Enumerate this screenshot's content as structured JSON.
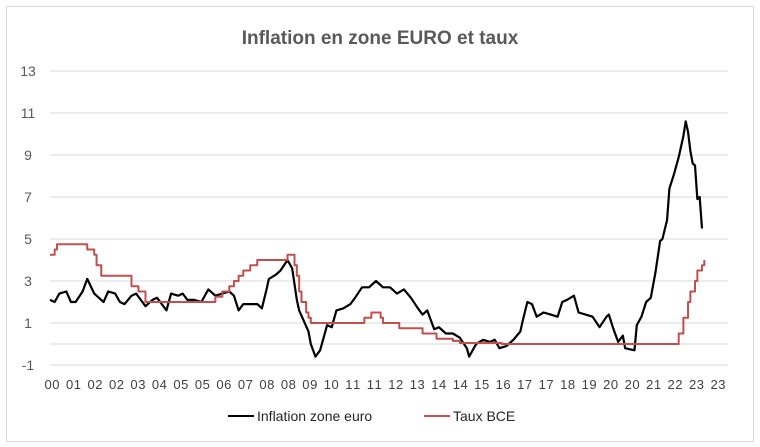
{
  "chart_data": {
    "type": "line",
    "title": "Inflation en zone EURO  et taux",
    "ylim": [
      -1,
      13
    ],
    "yticks": [
      "13",
      "11",
      "9",
      "7",
      "5",
      "3",
      "1",
      "",
      "-1"
    ],
    "ytick_values": [
      13,
      11,
      9,
      7,
      5,
      3,
      1,
      0,
      -1
    ],
    "xlim": [
      "2000-01",
      "2023-05"
    ],
    "xtick_labels": [
      "00",
      "01",
      "02",
      "02",
      "03",
      "04",
      "05",
      "05",
      "06",
      "07",
      "08",
      "08",
      "09",
      "10",
      "11",
      "11",
      "12",
      "13",
      "14",
      "14",
      "15",
      "16",
      "17",
      "17",
      "18",
      "19",
      "20",
      "20",
      "21",
      "22",
      "23",
      "23"
    ],
    "grid": true,
    "legend_position": "bottom",
    "series": [
      {
        "name": "Inflation zone euro",
        "color": "#000000",
        "step": false,
        "points": [
          [
            "2000-01",
            2.1
          ],
          [
            "2000-03",
            2.0
          ],
          [
            "2000-05",
            2.4
          ],
          [
            "2000-08",
            2.5
          ],
          [
            "2000-10",
            2.0
          ],
          [
            "2000-12",
            2.0
          ],
          [
            "2001-03",
            2.5
          ],
          [
            "2001-05",
            3.1
          ],
          [
            "2001-08",
            2.4
          ],
          [
            "2001-11",
            2.1
          ],
          [
            "2001-12",
            2.0
          ],
          [
            "2002-02",
            2.5
          ],
          [
            "2002-05",
            2.4
          ],
          [
            "2002-07",
            2.0
          ],
          [
            "2002-09",
            1.9
          ],
          [
            "2002-12",
            2.3
          ],
          [
            "2003-02",
            2.4
          ],
          [
            "2003-04",
            2.1
          ],
          [
            "2003-06",
            1.8
          ],
          [
            "2003-09",
            2.1
          ],
          [
            "2003-11",
            2.2
          ],
          [
            "2004-01",
            1.9
          ],
          [
            "2004-03",
            1.6
          ],
          [
            "2004-05",
            2.4
          ],
          [
            "2004-08",
            2.3
          ],
          [
            "2004-10",
            2.4
          ],
          [
            "2004-12",
            2.1
          ],
          [
            "2005-03",
            2.1
          ],
          [
            "2005-06",
            2.0
          ],
          [
            "2005-09",
            2.6
          ],
          [
            "2005-12",
            2.3
          ],
          [
            "2006-03",
            2.4
          ],
          [
            "2006-06",
            2.5
          ],
          [
            "2006-08",
            2.3
          ],
          [
            "2006-10",
            1.6
          ],
          [
            "2006-12",
            1.9
          ],
          [
            "2007-03",
            1.9
          ],
          [
            "2007-06",
            1.9
          ],
          [
            "2007-08",
            1.7
          ],
          [
            "2007-10",
            2.6
          ],
          [
            "2007-11",
            3.1
          ],
          [
            "2008-02",
            3.3
          ],
          [
            "2008-04",
            3.5
          ],
          [
            "2008-07",
            4.0
          ],
          [
            "2008-09",
            3.6
          ],
          [
            "2008-11",
            2.1
          ],
          [
            "2008-12",
            1.6
          ],
          [
            "2009-02",
            1.1
          ],
          [
            "2009-04",
            0.6
          ],
          [
            "2009-05",
            0.0
          ],
          [
            "2009-07",
            -0.6
          ],
          [
            "2009-09",
            -0.3
          ],
          [
            "2009-12",
            0.9
          ],
          [
            "2010-02",
            0.8
          ],
          [
            "2010-04",
            1.6
          ],
          [
            "2010-07",
            1.7
          ],
          [
            "2010-10",
            1.9
          ],
          [
            "2010-12",
            2.2
          ],
          [
            "2011-03",
            2.7
          ],
          [
            "2011-06",
            2.7
          ],
          [
            "2011-09",
            3.0
          ],
          [
            "2011-12",
            2.7
          ],
          [
            "2012-03",
            2.7
          ],
          [
            "2012-06",
            2.4
          ],
          [
            "2012-09",
            2.6
          ],
          [
            "2012-12",
            2.2
          ],
          [
            "2013-03",
            1.7
          ],
          [
            "2013-05",
            1.4
          ],
          [
            "2013-07",
            1.6
          ],
          [
            "2013-10",
            0.7
          ],
          [
            "2013-12",
            0.8
          ],
          [
            "2014-03",
            0.5
          ],
          [
            "2014-06",
            0.5
          ],
          [
            "2014-09",
            0.3
          ],
          [
            "2014-12",
            -0.2
          ],
          [
            "2015-01",
            -0.6
          ],
          [
            "2015-04",
            0.0
          ],
          [
            "2015-07",
            0.2
          ],
          [
            "2015-10",
            0.1
          ],
          [
            "2015-12",
            0.2
          ],
          [
            "2016-02",
            -0.2
          ],
          [
            "2016-05",
            -0.1
          ],
          [
            "2016-08",
            0.2
          ],
          [
            "2016-11",
            0.6
          ],
          [
            "2016-12",
            1.1
          ],
          [
            "2017-02",
            2.0
          ],
          [
            "2017-04",
            1.9
          ],
          [
            "2017-06",
            1.3
          ],
          [
            "2017-09",
            1.5
          ],
          [
            "2017-12",
            1.4
          ],
          [
            "2018-03",
            1.3
          ],
          [
            "2018-05",
            2.0
          ],
          [
            "2018-07",
            2.1
          ],
          [
            "2018-10",
            2.3
          ],
          [
            "2018-12",
            1.5
          ],
          [
            "2019-03",
            1.4
          ],
          [
            "2019-06",
            1.3
          ],
          [
            "2019-09",
            0.8
          ],
          [
            "2019-12",
            1.3
          ],
          [
            "2020-01",
            1.4
          ],
          [
            "2020-03",
            0.7
          ],
          [
            "2020-05",
            0.1
          ],
          [
            "2020-07",
            0.4
          ],
          [
            "2020-08",
            -0.2
          ],
          [
            "2020-12",
            -0.3
          ],
          [
            "2021-01",
            0.9
          ],
          [
            "2021-03",
            1.3
          ],
          [
            "2021-05",
            2.0
          ],
          [
            "2021-07",
            2.2
          ],
          [
            "2021-09",
            3.4
          ],
          [
            "2021-11",
            4.9
          ],
          [
            "2021-12",
            5.0
          ],
          [
            "2022-02",
            5.9
          ],
          [
            "2022-03",
            7.4
          ],
          [
            "2022-05",
            8.1
          ],
          [
            "2022-07",
            8.9
          ],
          [
            "2022-09",
            9.9
          ],
          [
            "2022-10",
            10.6
          ],
          [
            "2022-11",
            10.1
          ],
          [
            "2022-12",
            9.2
          ],
          [
            "2023-01",
            8.6
          ],
          [
            "2023-02",
            8.5
          ],
          [
            "2023-03",
            6.9
          ],
          [
            "2023-04",
            7.0
          ],
          [
            "2023-05",
            5.5
          ]
        ]
      },
      {
        "name": "Taux BCE",
        "color": "#c0504d",
        "step": true,
        "points": [
          [
            "2000-01",
            4.25
          ],
          [
            "2000-03",
            4.5
          ],
          [
            "2000-04",
            4.75
          ],
          [
            "2001-05",
            4.5
          ],
          [
            "2001-08",
            4.25
          ],
          [
            "2001-09",
            3.75
          ],
          [
            "2001-11",
            3.25
          ],
          [
            "2002-12",
            2.75
          ],
          [
            "2003-03",
            2.5
          ],
          [
            "2003-06",
            2.0
          ],
          [
            "2005-12",
            2.25
          ],
          [
            "2006-03",
            2.5
          ],
          [
            "2006-06",
            2.75
          ],
          [
            "2006-08",
            3.0
          ],
          [
            "2006-10",
            3.25
          ],
          [
            "2006-12",
            3.5
          ],
          [
            "2007-03",
            3.75
          ],
          [
            "2007-06",
            4.0
          ],
          [
            "2008-07",
            4.25
          ],
          [
            "2008-10",
            3.75
          ],
          [
            "2008-11",
            3.25
          ],
          [
            "2008-12",
            2.5
          ],
          [
            "2009-01",
            2.0
          ],
          [
            "2009-03",
            1.5
          ],
          [
            "2009-04",
            1.25
          ],
          [
            "2009-05",
            1.0
          ],
          [
            "2011-04",
            1.25
          ],
          [
            "2011-07",
            1.5
          ],
          [
            "2011-11",
            1.25
          ],
          [
            "2011-12",
            1.0
          ],
          [
            "2012-07",
            0.75
          ],
          [
            "2013-05",
            0.5
          ],
          [
            "2013-11",
            0.25
          ],
          [
            "2014-06",
            0.15
          ],
          [
            "2014-09",
            0.05
          ],
          [
            "2016-03",
            0.0
          ],
          [
            "2022-07",
            0.5
          ],
          [
            "2022-09",
            1.25
          ],
          [
            "2022-11",
            2.0
          ],
          [
            "2022-12",
            2.5
          ],
          [
            "2023-02",
            3.0
          ],
          [
            "2023-03",
            3.5
          ],
          [
            "2023-05",
            3.75
          ],
          [
            "2023-06",
            4.0
          ]
        ]
      }
    ]
  }
}
